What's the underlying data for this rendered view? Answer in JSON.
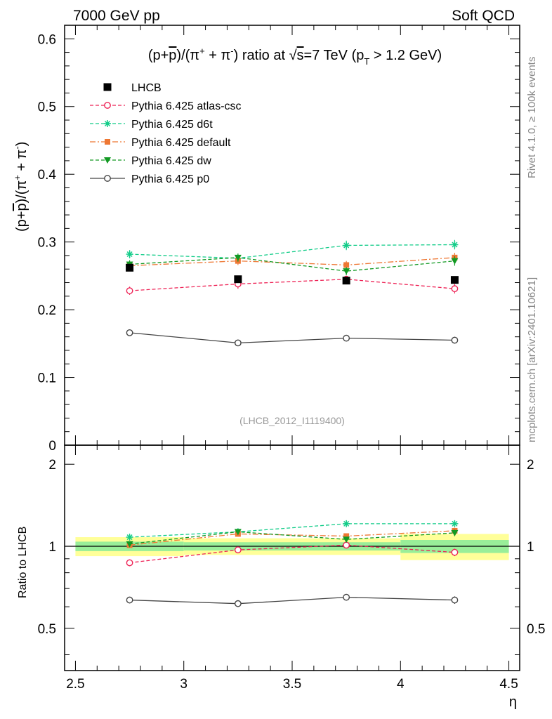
{
  "header": {
    "left": "7000 GeV pp",
    "right": "Soft QCD"
  },
  "side_labels": {
    "rivet": "Rivet 4.1.0, ≥ 100k events",
    "mcplots": "mcplots.cern.ch [arXiv:2401.10621]"
  },
  "chart_data": [
    {
      "type": "line",
      "panel": "main",
      "title": "(p+p̅)/(π⁺ + π⁻) ratio at √s=7 TeV (pT > 1.2 GeV)",
      "title_parts": {
        "t1": "(p+",
        "pbar": "p",
        "t2": ")/(π",
        "plus1": "+",
        "t3": " + π",
        "minus1": "-",
        "t4": ") ratio at ",
        "sqrt": "√",
        "s": "s",
        "t5": "=7 TeV (p",
        "sub": "T",
        "t6": " > 1.2 GeV)"
      },
      "ylabel": "(p+p̅)/(π⁺ + π⁻)",
      "ylabel_parts": {
        "t1": "(p+",
        "pbar": "p",
        "t2": ")/(π",
        "plus": "+",
        "t3": " + π",
        "minus": "-",
        "t4": ")"
      },
      "watermark": "(LHCB_2012_I1119400)",
      "xlim": [
        2.45,
        4.55
      ],
      "ylim": [
        0,
        0.62
      ],
      "yticks": [
        {
          "v": 0.1,
          "label": "0.1"
        },
        {
          "v": 0.2,
          "label": "0.2"
        },
        {
          "v": 0.3,
          "label": "0.3"
        },
        {
          "v": 0.4,
          "label": "0.4"
        },
        {
          "v": 0.5,
          "label": "0.5"
        },
        {
          "v": 0.6,
          "label": "0.6"
        }
      ],
      "ytick_zero": "0",
      "x": [
        2.75,
        3.25,
        3.75,
        4.25
      ],
      "data": {
        "name": "LHCB",
        "values": [
          0.262,
          0.245,
          0.243,
          0.244
        ]
      },
      "series": [
        {
          "name": "Pythia 6.425 atlas-csc",
          "color": "#ee2255",
          "marker": "open-circle",
          "dash": "5,3",
          "values": [
            0.228,
            0.238,
            0.245,
            0.231
          ],
          "err": [
            0.006,
            0.007,
            0.005,
            0.007
          ]
        },
        {
          "name": "Pythia 6.425 d6t",
          "color": "#11cc88",
          "marker": "star",
          "dash": "5,3",
          "values": [
            0.282,
            0.276,
            0.295,
            0.296
          ],
          "err": [
            0.006,
            0.005,
            0.007,
            0.007
          ]
        },
        {
          "name": "Pythia 6.425 default",
          "color": "#ee7733",
          "marker": "square",
          "dash": "8,3,2,3",
          "values": [
            0.265,
            0.272,
            0.266,
            0.277
          ],
          "err": [
            0.006,
            0.006,
            0.006,
            0.007
          ]
        },
        {
          "name": "Pythia 6.425 dw",
          "color": "#119922",
          "marker": "triangle-down",
          "dash": "5,3",
          "values": [
            0.267,
            0.277,
            0.257,
            0.272
          ],
          "err": [
            0.006,
            0.006,
            0.006,
            0.007
          ]
        },
        {
          "name": "Pythia 6.425 p0",
          "color": "#444444",
          "marker": "open-circle",
          "dash": "",
          "values": [
            0.166,
            0.151,
            0.158,
            0.155
          ],
          "err": [
            0.003,
            0.004,
            0.004,
            0.005
          ]
        }
      ]
    },
    {
      "type": "line",
      "panel": "ratio",
      "ylabel": "Ratio to LHCB",
      "xlabel": "η",
      "xlim": [
        2.45,
        4.55
      ],
      "ylim": [
        0.35,
        2.35
      ],
      "yticks": [
        {
          "v": 0.5,
          "label": "0.5"
        },
        {
          "v": 1,
          "label": "1"
        },
        {
          "v": 2,
          "label": "2"
        }
      ],
      "xticks": [
        {
          "v": 2.5,
          "label": "2.5"
        },
        {
          "v": 3,
          "label": "3"
        },
        {
          "v": 3.5,
          "label": "3.5"
        },
        {
          "v": 4,
          "label": "4"
        },
        {
          "v": 4.5,
          "label": "4.5"
        }
      ],
      "bands": [
        {
          "x0": 2.5,
          "x1": 3.0,
          "yellow": [
            0.92,
            1.08
          ],
          "green": [
            0.96,
            1.04
          ]
        },
        {
          "x0": 3.0,
          "x1": 3.5,
          "yellow": [
            0.93,
            1.07
          ],
          "green": [
            0.965,
            1.035
          ]
        },
        {
          "x0": 3.5,
          "x1": 4.0,
          "yellow": [
            0.93,
            1.07
          ],
          "green": [
            0.965,
            1.035
          ]
        },
        {
          "x0": 4.0,
          "x1": 4.5,
          "yellow": [
            0.89,
            1.11
          ],
          "green": [
            0.945,
            1.055
          ]
        }
      ],
      "x": [
        2.75,
        3.25,
        3.75,
        4.25
      ],
      "series": [
        {
          "name": "Pythia 6.425 atlas-csc",
          "values": [
            0.87,
            0.97,
            1.01,
            0.95
          ],
          "err": [
            0.025,
            0.025,
            0.02,
            0.03
          ]
        },
        {
          "name": "Pythia 6.425 d6t",
          "values": [
            1.08,
            1.13,
            1.21,
            1.21
          ],
          "err": [
            0.02,
            0.02,
            0.025,
            0.03
          ]
        },
        {
          "name": "Pythia 6.425 default",
          "values": [
            1.01,
            1.11,
            1.09,
            1.14
          ],
          "err": [
            0.02,
            0.02,
            0.02,
            0.03
          ]
        },
        {
          "name": "Pythia 6.425 dw",
          "values": [
            1.02,
            1.13,
            1.06,
            1.12
          ],
          "err": [
            0.02,
            0.02,
            0.02,
            0.03
          ]
        },
        {
          "name": "Pythia 6.425 p0",
          "values": [
            0.635,
            0.616,
            0.65,
            0.635
          ],
          "err": [
            0.015,
            0.015,
            0.018,
            0.02
          ]
        }
      ]
    }
  ]
}
